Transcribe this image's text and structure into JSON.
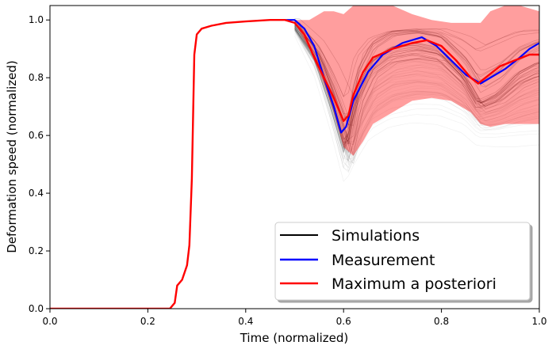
{
  "chart_data": {
    "type": "line",
    "title": "",
    "xlabel": "Time (normalized)",
    "ylabel": "Deformation speed (normalized)",
    "xlim": [
      0.0,
      1.0
    ],
    "ylim": [
      0.0,
      1.05
    ],
    "xticks": [
      "0.0",
      "0.2",
      "0.4",
      "0.6",
      "0.8",
      "1.0"
    ],
    "yticks": [
      "0.0",
      "0.2",
      "0.4",
      "0.6",
      "0.8",
      "1.0"
    ],
    "grid": false,
    "legend_position": "bottom-right",
    "series": [
      {
        "name": "Simulations",
        "color": "#000000",
        "style": "many thin semi-transparent traces from t = 0.5 to 1.0",
        "x": [
          0.5,
          0.55,
          0.58,
          0.61,
          0.63,
          0.66,
          0.7,
          0.75,
          0.8,
          0.85,
          0.88,
          0.92,
          0.96,
          1.0
        ],
        "median": [
          0.99,
          0.88,
          0.74,
          0.58,
          0.78,
          0.9,
          0.95,
          0.96,
          0.94,
          0.84,
          0.74,
          0.78,
          0.86,
          0.9
        ],
        "low": [
          0.98,
          0.8,
          0.62,
          0.42,
          0.48,
          0.56,
          0.6,
          0.62,
          0.62,
          0.6,
          0.56,
          0.55,
          0.54,
          0.54
        ],
        "high": [
          1.0,
          0.93,
          0.86,
          0.76,
          0.9,
          0.95,
          0.97,
          0.97,
          0.97,
          0.95,
          0.93,
          0.96,
          0.98,
          0.98
        ]
      },
      {
        "name": "Measurement",
        "color": "#0000ff",
        "x": [
          0.48,
          0.5,
          0.52,
          0.54,
          0.56,
          0.58,
          0.595,
          0.605,
          0.62,
          0.65,
          0.68,
          0.72,
          0.76,
          0.79,
          0.82,
          0.85,
          0.87,
          0.88,
          0.9,
          0.93,
          0.96,
          0.98,
          1.0
        ],
        "y": [
          1.0,
          1.0,
          0.97,
          0.91,
          0.8,
          0.7,
          0.61,
          0.63,
          0.72,
          0.82,
          0.88,
          0.92,
          0.94,
          0.91,
          0.86,
          0.81,
          0.79,
          0.78,
          0.8,
          0.83,
          0.87,
          0.9,
          0.92
        ]
      },
      {
        "name": "Maximum a posteriori",
        "color": "#ff0000",
        "style": "shaded red uncertainty band from t = 0.5 to 1.0",
        "x": [
          0.0,
          0.245,
          0.255,
          0.26,
          0.27,
          0.28,
          0.285,
          0.29,
          0.295,
          0.3,
          0.31,
          0.33,
          0.36,
          0.4,
          0.45,
          0.48,
          0.5,
          0.52,
          0.54,
          0.56,
          0.58,
          0.6,
          0.61,
          0.62,
          0.64,
          0.66,
          0.7,
          0.74,
          0.77,
          0.8,
          0.83,
          0.86,
          0.875,
          0.89,
          0.92,
          0.95,
          0.98,
          1.0
        ],
        "y": [
          0.0,
          0.0,
          0.02,
          0.08,
          0.1,
          0.15,
          0.22,
          0.45,
          0.88,
          0.95,
          0.97,
          0.98,
          0.99,
          0.995,
          1.0,
          1.0,
          0.99,
          0.95,
          0.87,
          0.8,
          0.73,
          0.65,
          0.67,
          0.74,
          0.82,
          0.87,
          0.9,
          0.92,
          0.93,
          0.91,
          0.86,
          0.8,
          0.78,
          0.8,
          0.84,
          0.86,
          0.88,
          0.88
        ],
        "band_x": [
          0.5,
          0.53,
          0.56,
          0.58,
          0.6,
          0.62,
          0.64,
          0.66,
          0.7,
          0.74,
          0.78,
          0.82,
          0.86,
          0.88,
          0.9,
          0.93,
          0.96,
          1.0
        ],
        "band_low": [
          0.99,
          0.9,
          0.78,
          0.68,
          0.56,
          0.53,
          0.58,
          0.64,
          0.68,
          0.72,
          0.73,
          0.72,
          0.68,
          0.64,
          0.63,
          0.64,
          0.64,
          0.64
        ],
        "band_high": [
          1.0,
          1.0,
          1.03,
          1.03,
          1.02,
          1.05,
          1.05,
          1.05,
          1.05,
          1.02,
          1.0,
          0.99,
          0.99,
          0.99,
          1.03,
          1.05,
          1.05,
          1.03
        ]
      }
    ]
  }
}
